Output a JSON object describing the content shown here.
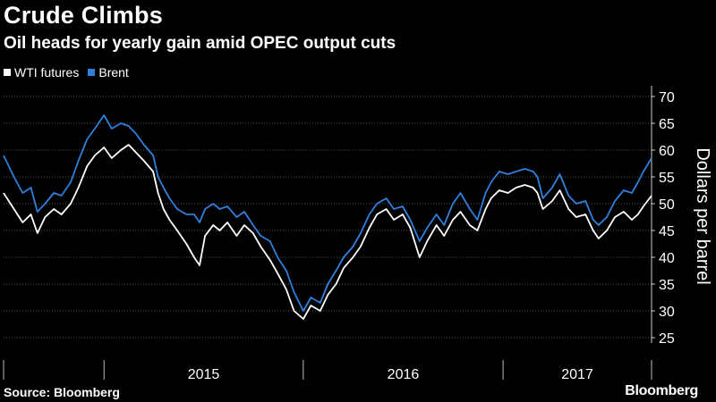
{
  "header": {
    "title": "Crude Climbs",
    "subtitle": "Oil heads for yearly gain amid OPEC output cuts"
  },
  "footer": {
    "source": "Source: Bloomberg",
    "logo": "Bloomberg"
  },
  "colors": {
    "background": "#000000",
    "wti": "#ffffff",
    "brent": "#2f7fdc",
    "annotation": "#8cc63f",
    "grid": "#555555"
  },
  "chart_data": {
    "type": "line",
    "ylabel": "Dollars per barrel",
    "ylim": [
      24,
      72
    ],
    "yticks": [
      25,
      30,
      35,
      40,
      45,
      50,
      55,
      60,
      65,
      70
    ],
    "xlim": [
      "2014-07-01",
      "2017-09-30"
    ],
    "x_period_labels": [
      "2015",
      "2016",
      "2017"
    ],
    "grid": true,
    "legend_position": "top-left",
    "series": [
      {
        "name": "WTI futures",
        "color": "#ffffff",
        "points": [
          [
            "2014-07-01",
            52
          ],
          [
            "2014-07-20",
            49
          ],
          [
            "2014-08-05",
            46.5
          ],
          [
            "2014-08-20",
            48
          ],
          [
            "2014-09-01",
            44.5
          ],
          [
            "2014-09-15",
            47.5
          ],
          [
            "2014-10-01",
            49
          ],
          [
            "2014-10-15",
            48
          ],
          [
            "2014-11-01",
            50
          ],
          [
            "2014-11-15",
            53
          ],
          [
            "2014-12-01",
            57
          ],
          [
            "2014-12-15",
            59
          ],
          [
            "2015-01-01",
            60.5
          ],
          [
            "2015-01-15",
            58.5
          ],
          [
            "2015-02-01",
            60
          ],
          [
            "2015-02-15",
            61
          ],
          [
            "2015-03-01",
            59.5
          ],
          [
            "2015-03-15",
            58
          ],
          [
            "2015-04-01",
            56
          ],
          [
            "2015-04-10",
            52
          ],
          [
            "2015-04-20",
            49
          ],
          [
            "2015-05-01",
            47
          ],
          [
            "2015-05-15",
            45
          ],
          [
            "2015-06-01",
            42.5
          ],
          [
            "2015-06-15",
            40
          ],
          [
            "2015-06-25",
            38.5
          ],
          [
            "2015-07-05",
            44
          ],
          [
            "2015-07-20",
            46
          ],
          [
            "2015-08-01",
            45
          ],
          [
            "2015-08-15",
            46.5
          ],
          [
            "2015-09-01",
            44
          ],
          [
            "2015-09-15",
            46
          ],
          [
            "2015-10-01",
            44.5
          ],
          [
            "2015-10-15",
            42
          ],
          [
            "2015-11-01",
            39.5
          ],
          [
            "2015-11-15",
            37
          ],
          [
            "2015-12-01",
            34
          ],
          [
            "2015-12-15",
            30
          ],
          [
            "2016-01-01",
            28.5
          ],
          [
            "2016-01-15",
            31
          ],
          [
            "2016-02-01",
            30
          ],
          [
            "2016-02-15",
            33
          ],
          [
            "2016-03-01",
            35
          ],
          [
            "2016-03-15",
            38
          ],
          [
            "2016-04-01",
            40
          ],
          [
            "2016-04-15",
            42
          ],
          [
            "2016-05-01",
            45.5
          ],
          [
            "2016-05-15",
            48
          ],
          [
            "2016-06-01",
            49
          ],
          [
            "2016-06-15",
            47
          ],
          [
            "2016-07-01",
            48
          ],
          [
            "2016-07-15",
            45.5
          ],
          [
            "2016-08-01",
            40
          ],
          [
            "2016-08-15",
            43
          ],
          [
            "2016-09-01",
            46
          ],
          [
            "2016-09-15",
            44
          ],
          [
            "2016-10-01",
            47
          ],
          [
            "2016-10-15",
            48.5
          ],
          [
            "2016-11-01",
            46
          ],
          [
            "2016-11-15",
            45
          ],
          [
            "2016-11-30",
            49
          ],
          [
            "2016-12-10",
            51
          ],
          [
            "2016-12-25",
            52.5
          ],
          [
            "2017-01-10",
            52
          ],
          [
            "2017-01-25",
            53
          ],
          [
            "2017-02-10",
            53.5
          ],
          [
            "2017-02-25",
            53
          ],
          [
            "2017-03-05",
            52
          ],
          [
            "2017-03-15",
            49
          ],
          [
            "2017-04-01",
            50.5
          ],
          [
            "2017-04-15",
            52.5
          ],
          [
            "2017-05-01",
            49
          ],
          [
            "2017-05-15",
            47.5
          ],
          [
            "2017-06-01",
            48
          ],
          [
            "2017-06-15",
            45
          ],
          [
            "2017-06-25",
            43.5
          ],
          [
            "2017-07-10",
            45
          ],
          [
            "2017-07-25",
            47.5
          ],
          [
            "2017-08-10",
            48.5
          ],
          [
            "2017-08-25",
            47
          ],
          [
            "2017-09-05",
            48
          ],
          [
            "2017-09-15",
            49.5
          ],
          [
            "2017-09-30",
            51.5
          ]
        ]
      },
      {
        "name": "Brent",
        "color": "#2f7fdc",
        "points": [
          [
            "2014-07-01",
            59
          ],
          [
            "2014-07-20",
            55
          ],
          [
            "2014-08-05",
            52
          ],
          [
            "2014-08-20",
            53
          ],
          [
            "2014-09-01",
            48.5
          ],
          [
            "2014-09-15",
            50
          ],
          [
            "2014-10-01",
            52
          ],
          [
            "2014-10-15",
            51.5
          ],
          [
            "2014-11-01",
            54
          ],
          [
            "2014-11-15",
            58
          ],
          [
            "2014-12-01",
            62
          ],
          [
            "2014-12-15",
            64
          ],
          [
            "2015-01-01",
            66.5
          ],
          [
            "2015-01-15",
            64
          ],
          [
            "2015-02-01",
            65
          ],
          [
            "2015-02-15",
            64.5
          ],
          [
            "2015-03-01",
            63
          ],
          [
            "2015-03-15",
            61
          ],
          [
            "2015-04-01",
            59
          ],
          [
            "2015-04-10",
            55
          ],
          [
            "2015-04-20",
            53
          ],
          [
            "2015-05-01",
            51
          ],
          [
            "2015-05-15",
            49
          ],
          [
            "2015-06-01",
            48
          ],
          [
            "2015-06-15",
            48
          ],
          [
            "2015-06-25",
            46.5
          ],
          [
            "2015-07-05",
            49
          ],
          [
            "2015-07-20",
            50
          ],
          [
            "2015-08-01",
            49
          ],
          [
            "2015-08-15",
            49.5
          ],
          [
            "2015-09-01",
            47.5
          ],
          [
            "2015-09-15",
            48.5
          ],
          [
            "2015-10-01",
            46
          ],
          [
            "2015-10-15",
            44
          ],
          [
            "2015-11-01",
            43
          ],
          [
            "2015-11-15",
            40
          ],
          [
            "2015-12-01",
            37.5
          ],
          [
            "2015-12-15",
            33.5
          ],
          [
            "2016-01-01",
            30
          ],
          [
            "2016-01-15",
            32.5
          ],
          [
            "2016-02-01",
            31.5
          ],
          [
            "2016-02-15",
            35
          ],
          [
            "2016-03-01",
            37.5
          ],
          [
            "2016-03-15",
            40
          ],
          [
            "2016-04-01",
            42
          ],
          [
            "2016-04-15",
            44.5
          ],
          [
            "2016-05-01",
            48
          ],
          [
            "2016-05-15",
            50
          ],
          [
            "2016-06-01",
            51
          ],
          [
            "2016-06-15",
            49
          ],
          [
            "2016-07-01",
            49.5
          ],
          [
            "2016-07-15",
            47
          ],
          [
            "2016-08-01",
            43
          ],
          [
            "2016-08-15",
            45.5
          ],
          [
            "2016-09-01",
            48
          ],
          [
            "2016-09-15",
            46
          ],
          [
            "2016-10-01",
            50
          ],
          [
            "2016-10-15",
            52
          ],
          [
            "2016-11-01",
            49
          ],
          [
            "2016-11-15",
            47
          ],
          [
            "2016-11-30",
            52
          ],
          [
            "2016-12-10",
            54
          ],
          [
            "2016-12-25",
            56
          ],
          [
            "2017-01-10",
            55.5
          ],
          [
            "2017-01-25",
            56
          ],
          [
            "2017-02-10",
            56.5
          ],
          [
            "2017-02-25",
            56
          ],
          [
            "2017-03-05",
            55
          ],
          [
            "2017-03-15",
            51
          ],
          [
            "2017-04-01",
            53
          ],
          [
            "2017-04-15",
            55.5
          ],
          [
            "2017-05-01",
            51.5
          ],
          [
            "2017-05-15",
            50
          ],
          [
            "2017-06-01",
            50.5
          ],
          [
            "2017-06-15",
            47
          ],
          [
            "2017-06-25",
            46
          ],
          [
            "2017-07-10",
            47.5
          ],
          [
            "2017-07-25",
            50.5
          ],
          [
            "2017-08-10",
            52.5
          ],
          [
            "2017-08-25",
            52
          ],
          [
            "2017-09-05",
            54
          ],
          [
            "2017-09-15",
            56
          ],
          [
            "2017-09-30",
            58.5
          ]
        ]
      }
    ],
    "annotations": []
  }
}
